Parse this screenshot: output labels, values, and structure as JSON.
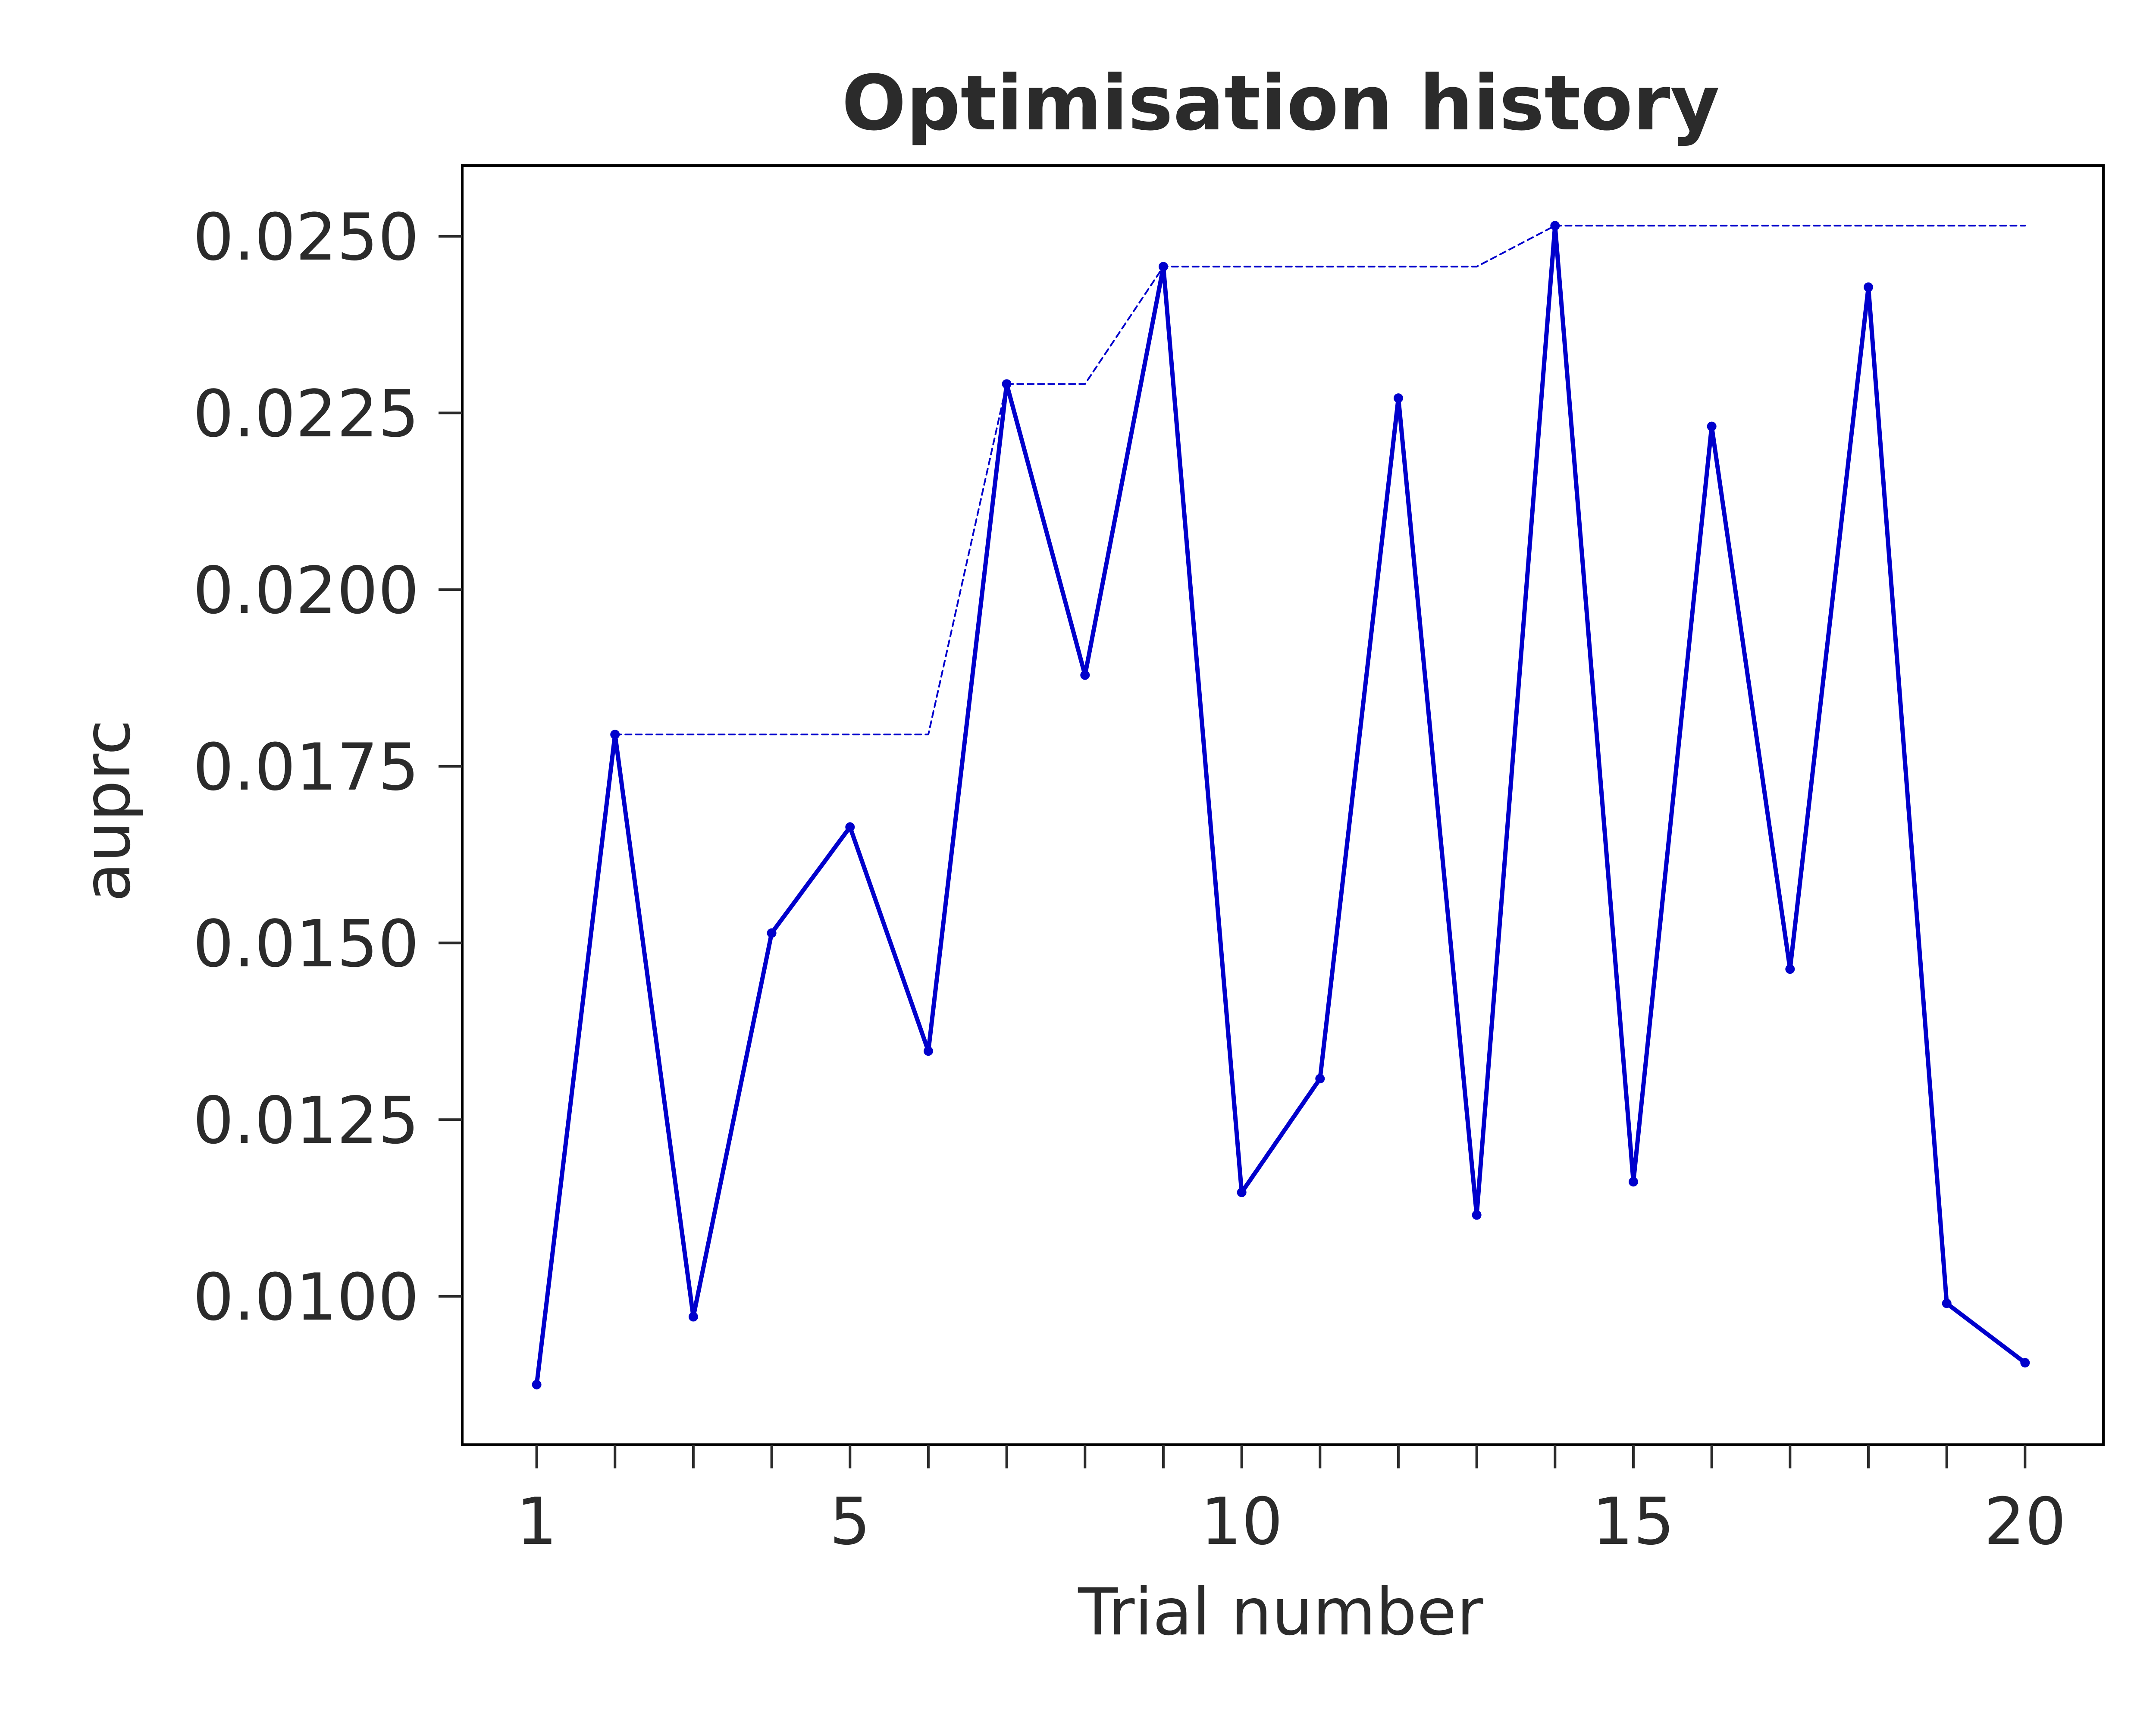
{
  "chart_data": {
    "type": "line",
    "title": "Optimisation history",
    "xlabel": "Trial number",
    "ylabel": "auprc",
    "x": [
      1,
      2,
      3,
      4,
      5,
      6,
      7,
      8,
      9,
      10,
      11,
      12,
      13,
      14,
      15,
      16,
      17,
      18,
      19,
      20
    ],
    "x_ticks": [
      1,
      5,
      10,
      15,
      20
    ],
    "y_ticks": [
      0.01,
      0.0125,
      0.015,
      0.0175,
      0.02,
      0.0225,
      0.025
    ],
    "y_tick_labels": [
      "0.0100",
      "0.0125",
      "0.0150",
      "0.0175",
      "0.0200",
      "0.0225",
      "0.0250"
    ],
    "xlim": [
      0.05,
      21.0
    ],
    "ylim": [
      0.0079,
      0.026
    ],
    "grid": false,
    "legend": "none",
    "series": [
      {
        "role": "trial-value",
        "style": "solid",
        "color": "#0000cc",
        "values": [
          0.00875,
          0.01795,
          0.00971,
          0.01514,
          0.01664,
          0.01347,
          0.02291,
          0.01879,
          0.02457,
          0.01147,
          0.01308,
          0.02271,
          0.01115,
          0.02515,
          0.01162,
          0.02231,
          0.01463,
          0.02428,
          0.0099,
          0.00906
        ]
      },
      {
        "role": "best-so-far",
        "style": "dashed",
        "color": "#0000cc",
        "values": [
          null,
          0.01795,
          0.01795,
          0.01795,
          0.01795,
          0.01795,
          0.02291,
          0.02291,
          0.02457,
          0.02457,
          0.02457,
          0.02457,
          0.02457,
          0.02515,
          0.02515,
          0.02515,
          0.02515,
          0.02515,
          0.02515,
          0.02515
        ]
      }
    ]
  }
}
